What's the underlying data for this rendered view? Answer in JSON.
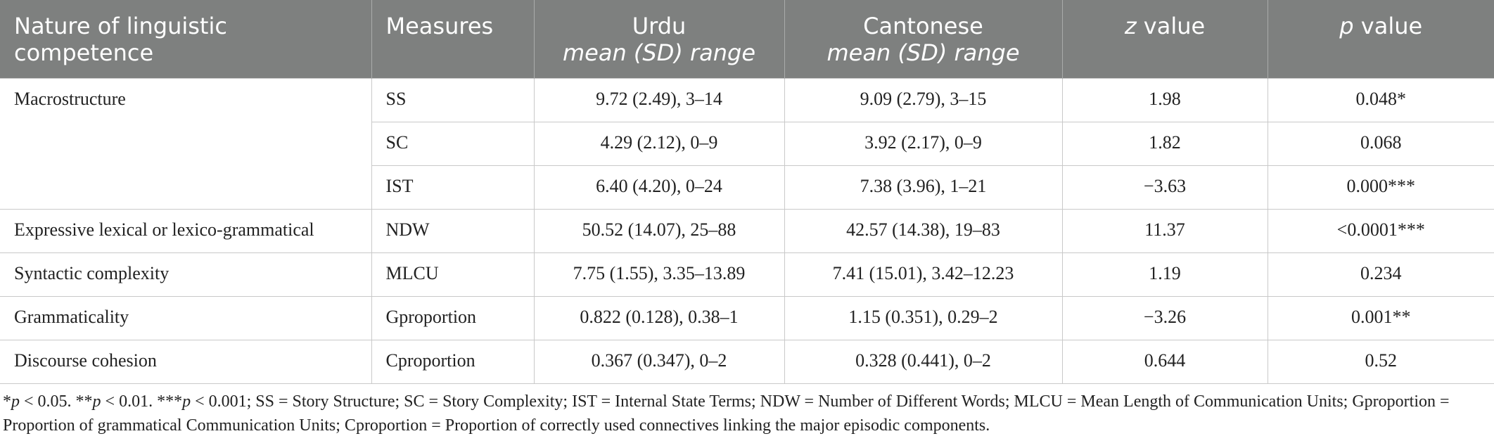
{
  "table": {
    "header": [
      [
        "Nature of linguistic competence"
      ],
      [
        "Measures"
      ],
      [
        "Urdu",
        "mean (SD) range"
      ],
      [
        "Cantonese",
        "mean (SD) range"
      ],
      [
        "z",
        " value"
      ],
      [
        "p",
        " value"
      ]
    ],
    "groups": [
      {
        "label": "Macrostructure",
        "rows": [
          [
            "SS",
            "9.72 (2.49), 3–14",
            "9.09 (2.79), 3–15",
            "1.98",
            "0.048*"
          ],
          [
            "SC",
            "4.29 (2.12), 0–9",
            "3.92 (2.17), 0–9",
            "1.82",
            "0.068"
          ],
          [
            "IST",
            "6.40 (4.20), 0–24",
            "7.38 (3.96), 1–21",
            "−3.63",
            "0.000***"
          ]
        ]
      },
      {
        "label": "Expressive lexical or lexico-grammatical",
        "rows": [
          [
            "NDW",
            "50.52 (14.07), 25–88",
            "42.57 (14.38), 19–83",
            "11.37",
            "<0.0001***"
          ]
        ]
      },
      {
        "label": "Syntactic complexity",
        "rows": [
          [
            "MLCU",
            "7.75 (1.55), 3.35–13.89",
            "7.41 (15.01), 3.42–12.23",
            "1.19",
            "0.234"
          ]
        ]
      },
      {
        "label": "Grammaticality",
        "rows": [
          [
            "Gproportion",
            "0.822 (0.128), 0.38–1",
            "1.15 (0.351), 0.29–2",
            "−3.26",
            "0.001**"
          ]
        ]
      },
      {
        "label": "Discourse cohesion",
        "rows": [
          [
            "Cproportion",
            "0.367 (0.347), 0–2",
            "0.328 (0.441), 0–2",
            "0.644",
            "0.52"
          ]
        ]
      }
    ],
    "footnote": [
      "*",
      "p",
      " < 0.05. **",
      "p",
      " < 0.01. ***",
      "p",
      " < 0.001; SS = Story Structure; SC = Story Complexity; IST = Internal State Terms; NDW = Number of Different Words; MLCU = Mean Length of Communication Units; Gproportion = Proportion of grammatical Communication Units; Cproportion = Proportion of correctly used connectives linking the major episodic components."
    ]
  }
}
